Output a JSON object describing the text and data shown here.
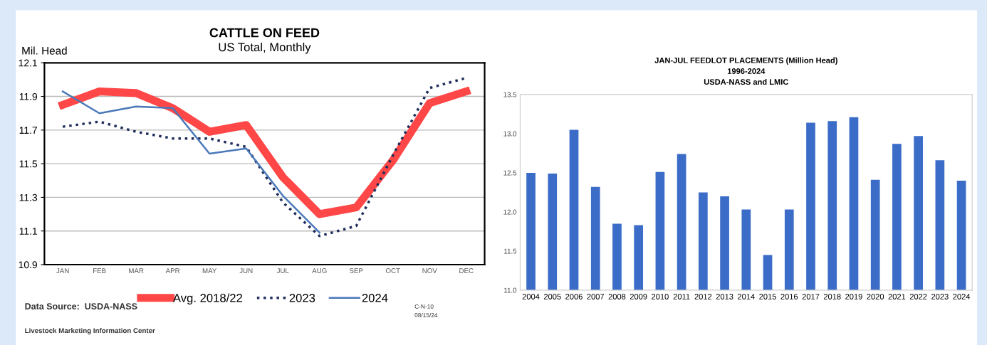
{
  "chart_data": [
    {
      "type": "line",
      "title": "CATTLE ON FEED",
      "subtitle": "US Total, Monthly",
      "ylabel": "Mil. Head",
      "categories": [
        "JAN",
        "FEB",
        "MAR",
        "APR",
        "MAY",
        "JUN",
        "JUL",
        "AUG",
        "SEP",
        "OCT",
        "NOV",
        "DEC"
      ],
      "series": [
        {
          "name": "Avg. 2018/22",
          "color": "#ff4747",
          "line_style": "solid",
          "values": [
            11.85,
            11.93,
            11.92,
            11.83,
            11.69,
            11.73,
            11.42,
            11.2,
            11.24,
            11.52,
            11.86,
            11.93
          ]
        },
        {
          "name": "2023",
          "color": "#1f2d5a",
          "line_style": "dotted",
          "values": [
            11.72,
            11.75,
            11.69,
            11.65,
            11.65,
            11.6,
            11.27,
            11.07,
            11.13,
            11.55,
            11.95,
            12.01
          ]
        },
        {
          "name": "2024",
          "color": "#4a78b8",
          "line_style": "solid",
          "values": [
            11.93,
            11.8,
            11.84,
            11.83,
            11.56,
            11.59,
            11.31,
            11.09,
            null,
            null,
            null,
            null
          ]
        }
      ],
      "ylim": [
        10.9,
        12.1
      ],
      "yticks": [
        10.9,
        11.1,
        11.3,
        11.5,
        11.7,
        11.9,
        12.1
      ],
      "grid": "y",
      "legend": "bottom",
      "annotations": [
        "Data Source:  USDA-NASS",
        "Livestock Marketing Information Center",
        "C-N-10",
        "08/15/24"
      ]
    },
    {
      "type": "bar",
      "title": "JAN-JUL FEEDLOT PLACEMENTS (Million Head)",
      "subtitle": "1996-2024\nUSDA-NASS and LMIC",
      "categories": [
        "2004",
        "2005",
        "2006",
        "2007",
        "2008",
        "2009",
        "2010",
        "2011",
        "2012",
        "2013",
        "2014",
        "2015",
        "2016",
        "2017",
        "2018",
        "2019",
        "2020",
        "2021",
        "2022",
        "2023",
        "2024"
      ],
      "values": [
        12.5,
        12.49,
        13.05,
        12.32,
        11.85,
        11.83,
        12.51,
        12.74,
        12.25,
        12.2,
        12.03,
        11.45,
        12.03,
        13.14,
        13.16,
        13.21,
        12.41,
        12.87,
        12.97,
        12.66,
        12.4
      ],
      "color": "#3a6cc8",
      "ylim": [
        11.0,
        13.5
      ],
      "yticks": [
        {
          "value": 11.0,
          "label": "11.0"
        },
        {
          "value": 11.5,
          "label": "11.5"
        },
        {
          "value": 12.0,
          "label": "12.0"
        },
        {
          "value": 12.5,
          "label": "12.5"
        },
        {
          "value": 13.0,
          "label": "13.0"
        },
        {
          "value": 13.5,
          "label": "13.5"
        }
      ],
      "grid": false
    }
  ]
}
